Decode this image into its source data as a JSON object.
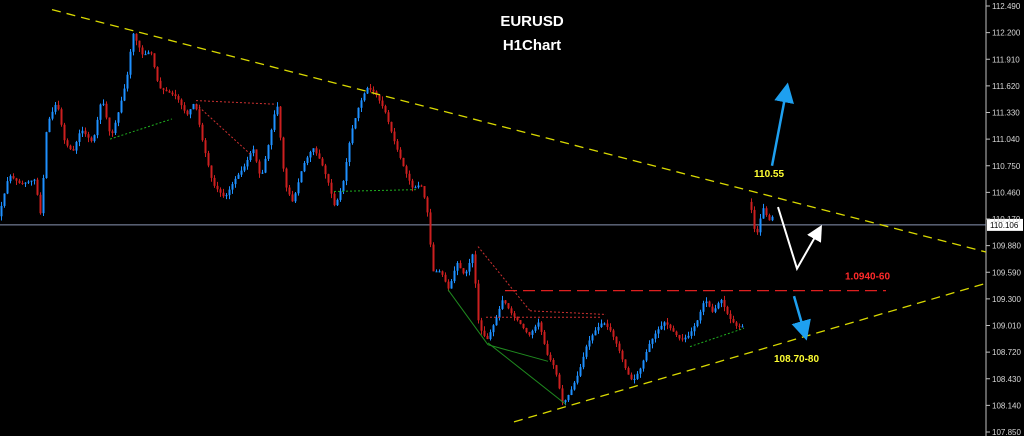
{
  "chart_data": {
    "type": "candlestick",
    "title": "EURUSD",
    "subtitle": "H1Chart",
    "ylim": [
      107.85,
      112.49
    ],
    "y_ticks": [
      "112.490",
      "112.200",
      "111.910",
      "111.620",
      "111.330",
      "111.040",
      "110.750",
      "110.460",
      "110.170",
      "109.880",
      "109.590",
      "109.300",
      "109.010",
      "108.720",
      "108.430",
      "108.140",
      "107.850"
    ],
    "current_price": "110.106",
    "annotations": {
      "peak_label": "110.55",
      "resistance_label": "1.0940-60",
      "support_label": "108.70-80"
    },
    "colors": {
      "background": "#000000",
      "axis": "#c0c0c0",
      "bull": "#1e90ff",
      "bear": "#cc1f1f",
      "trendline": "#d9d900",
      "resistance": "#dd1f1f",
      "green_dotted": "#1fae1f",
      "red_dotted": "#cc3030",
      "arrow_blue": "#1ea0f0",
      "arrow_white": "#ffffff",
      "price_line": "#8a96b4"
    }
  }
}
